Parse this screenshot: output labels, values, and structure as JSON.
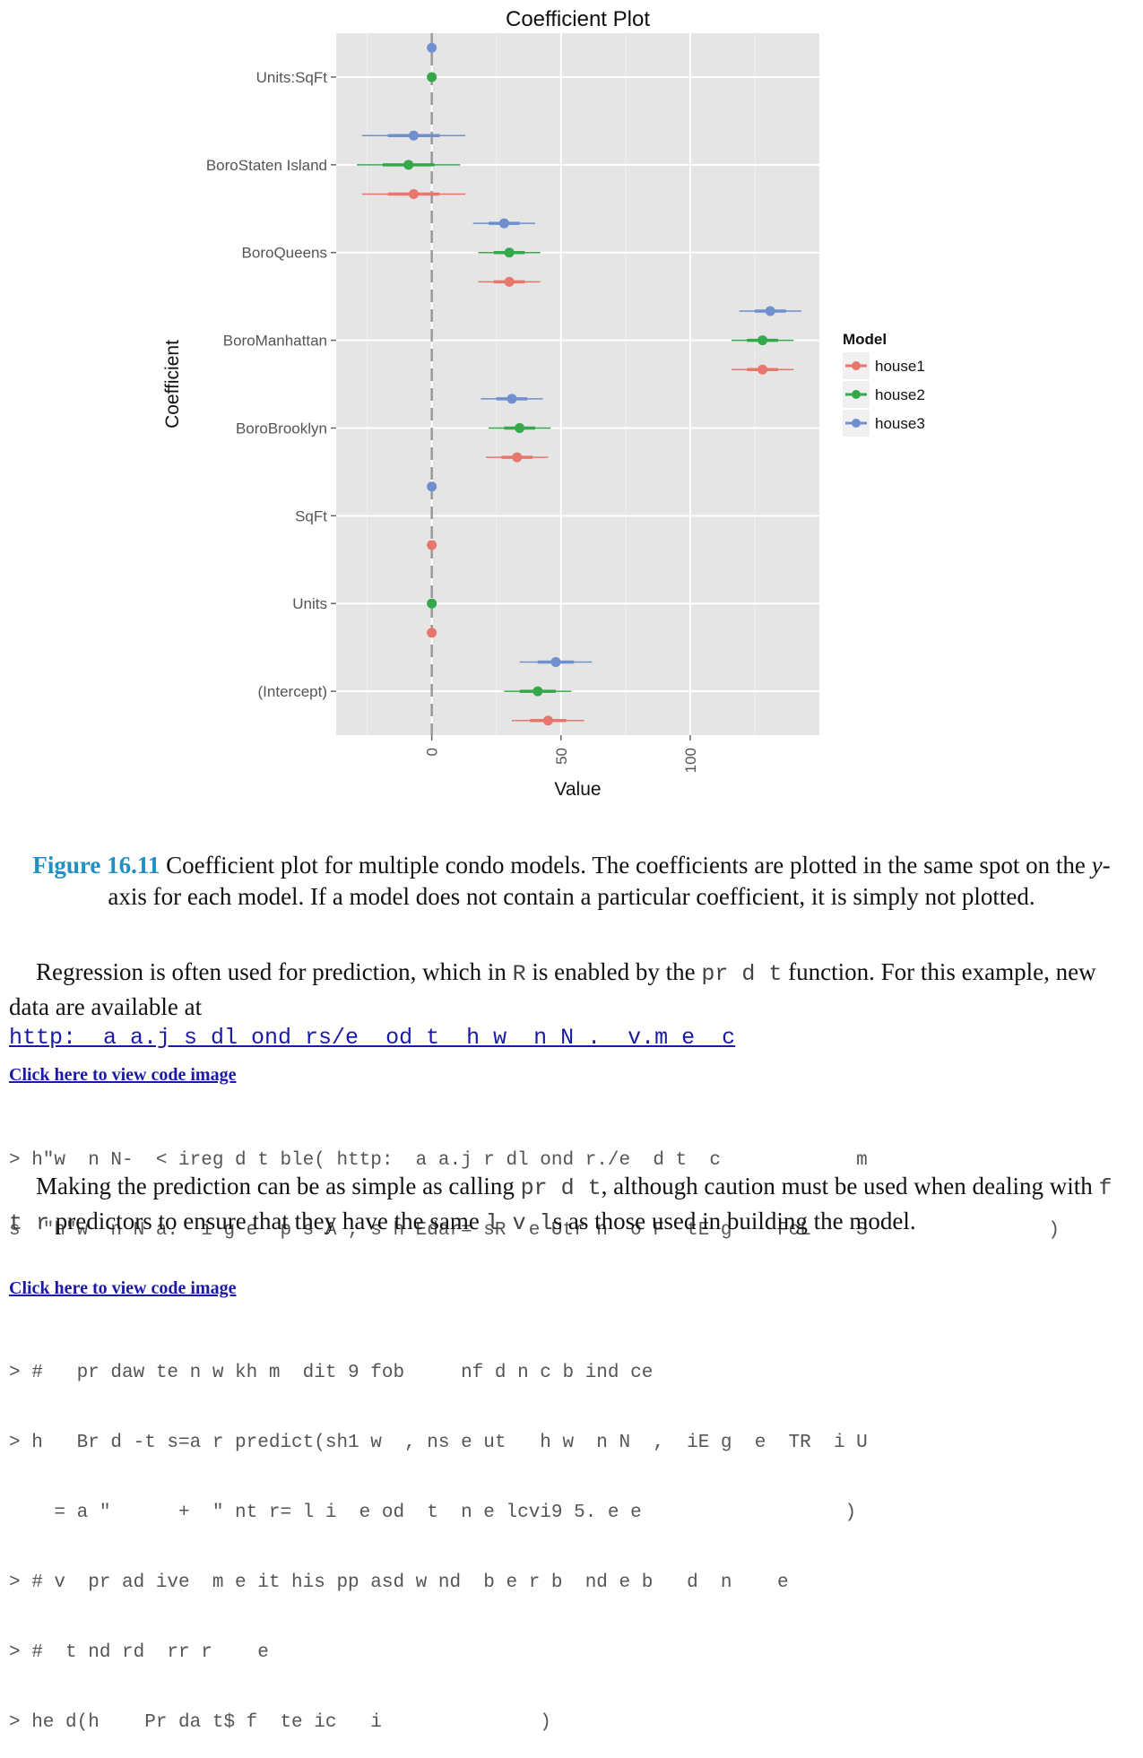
{
  "chart_data": {
    "type": "scatter",
    "title": "Coefficient Plot",
    "xlabel": "Value",
    "ylabel": "Coefficient",
    "xlim": [
      -37,
      150
    ],
    "xticks": [
      0,
      50,
      100
    ],
    "xtick_labels": [
      "0",
      "50",
      "100"
    ],
    "categories": [
      "Units:SqFt",
      "BoroStaten Island",
      "BoroQueens",
      "BoroManhattan",
      "BoroBrooklyn",
      "SqFt",
      "Units",
      "(Intercept)"
    ],
    "legend": {
      "title": "Model",
      "placement": "right"
    },
    "grid": true,
    "reference_line": 0,
    "series": [
      {
        "name": "house1",
        "color": "#e8766d",
        "offset": -1,
        "points": [
          {
            "coef": "BoroStaten Island",
            "value": -7,
            "inner": [
              -17,
              3
            ],
            "outer": [
              -27,
              13
            ]
          },
          {
            "coef": "BoroQueens",
            "value": 30,
            "inner": [
              24,
              36
            ],
            "outer": [
              18,
              42
            ]
          },
          {
            "coef": "BoroManhattan",
            "value": 128,
            "inner": [
              122,
              134
            ],
            "outer": [
              116,
              140
            ]
          },
          {
            "coef": "BoroBrooklyn",
            "value": 33,
            "inner": [
              27,
              39
            ],
            "outer": [
              21,
              45
            ]
          },
          {
            "coef": "SqFt",
            "value": 0,
            "inner": [
              0,
              0
            ],
            "outer": [
              0,
              0
            ]
          },
          {
            "coef": "Units",
            "value": 0,
            "inner": [
              0,
              0
            ],
            "outer": [
              0,
              0
            ]
          },
          {
            "coef": "(Intercept)",
            "value": 45,
            "inner": [
              38,
              52
            ],
            "outer": [
              31,
              59
            ]
          }
        ]
      },
      {
        "name": "house2",
        "color": "#35a84a",
        "offset": 0,
        "points": [
          {
            "coef": "Units:SqFt",
            "value": 0,
            "inner": [
              0,
              0
            ],
            "outer": [
              0,
              0
            ]
          },
          {
            "coef": "BoroStaten Island",
            "value": -9,
            "inner": [
              -19,
              1
            ],
            "outer": [
              -29,
              11
            ]
          },
          {
            "coef": "BoroQueens",
            "value": 30,
            "inner": [
              24,
              36
            ],
            "outer": [
              18,
              42
            ]
          },
          {
            "coef": "BoroManhattan",
            "value": 128,
            "inner": [
              122,
              134
            ],
            "outer": [
              116,
              140
            ]
          },
          {
            "coef": "BoroBrooklyn",
            "value": 34,
            "inner": [
              28,
              40
            ],
            "outer": [
              22,
              46
            ]
          },
          {
            "coef": "Units",
            "value": 0,
            "inner": [
              0,
              0
            ],
            "outer": [
              0,
              0
            ]
          },
          {
            "coef": "(Intercept)",
            "value": 41,
            "inner": [
              34,
              48
            ],
            "outer": [
              28,
              54
            ]
          }
        ]
      },
      {
        "name": "house3",
        "color": "#6f8fce",
        "offset": 1,
        "points": [
          {
            "coef": "Units:SqFt",
            "value": 0,
            "inner": [
              0,
              0
            ],
            "outer": [
              0,
              0
            ]
          },
          {
            "coef": "BoroStaten Island",
            "value": -7,
            "inner": [
              -17,
              3
            ],
            "outer": [
              -27,
              13
            ]
          },
          {
            "coef": "BoroQueens",
            "value": 28,
            "inner": [
              22,
              34
            ],
            "outer": [
              16,
              40
            ]
          },
          {
            "coef": "BoroManhattan",
            "value": 131,
            "inner": [
              125,
              137
            ],
            "outer": [
              119,
              143
            ]
          },
          {
            "coef": "BoroBrooklyn",
            "value": 31,
            "inner": [
              25,
              37
            ],
            "outer": [
              19,
              43
            ]
          },
          {
            "coef": "SqFt",
            "value": 0,
            "inner": [
              0,
              0
            ],
            "outer": [
              0,
              0
            ]
          },
          {
            "coef": "(Intercept)",
            "value": 48,
            "inner": [
              41,
              55
            ],
            "outer": [
              34,
              62
            ]
          }
        ]
      }
    ]
  },
  "caption": {
    "label": "Figure 16.11",
    "text": " Coefficient plot for multiple condo models. The coefficients are plotted in the same spot on the ",
    "italic": "y",
    "text2": "-axis for each model. If a model does not contain a particular coefficient, it is simply not plotted."
  },
  "para1": {
    "t1": "Regression is often used for prediction, which in ",
    "code1": "R",
    "t2": " is enabled by the ",
    "code2": "pr d  t",
    "t3": " function. For this example, new data are available at"
  },
  "url": "http:  a a.j s dl ond rs/e  od t  h w  n N .  v.m e  c",
  "code_link_label": "Click here to view code image",
  "code1_lines": [
    "> h\"w  n N-  < ireg d t ble( http:  a a.j r dl ond r./e  d t  c            m",
    "s  \"h\"w  n N a.  i g e  p s A , s h Edar= sR  e Utr n  o F  tE g    FcL    S                )"
  ],
  "para2": {
    "t1": "Making the prediction can be as simple as calling ",
    "code1": "pr d  t",
    "t2": ", although caution must be used when dealing with ",
    "code2": "f   t r",
    "t3": " predictors to ensure that they have the same ",
    "code3": "l  v  l",
    "t4": "s as those used in building the model."
  },
  "code2_lines": [
    "> #   pr daw te n w kh m  dit 9 fob     nf d n c b ind ce",
    "> h   Br d -t s=a r predict(sh1 w  , ns e ut   h w  n N  ,  iE g  e  TR  i U",
    "    = a \"      +  \" nt r= l i  e od  t  n e lcvi9 5. e e                  )",
    "> # v  pr ad ive  m e it his pp asd w nd  b e r b  nd e b   d  n    e",
    "> #  t nd rd  rr r    e",
    "> he d(h    Pr da t$ f  te ic   i              )"
  ]
}
